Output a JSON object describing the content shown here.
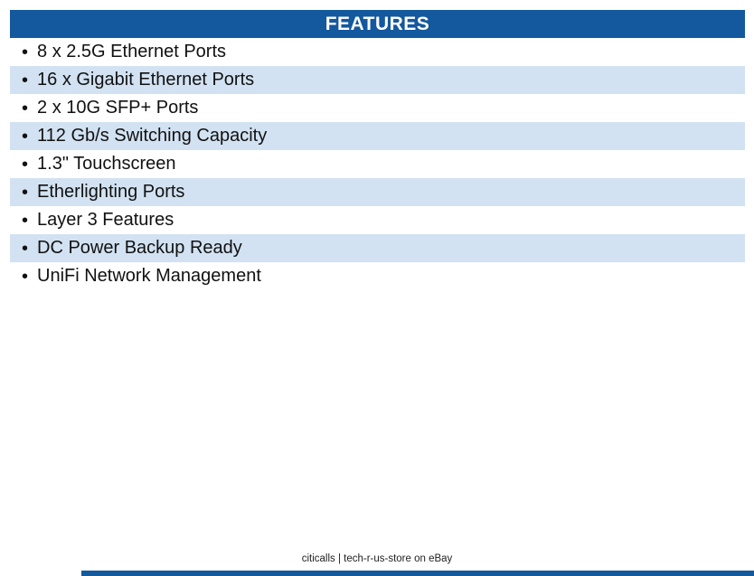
{
  "header": {
    "title": "FEATURES"
  },
  "bullet": "•",
  "features": [
    "8 x 2.5G Ethernet Ports",
    "16 x Gigabit Ethernet Ports",
    "2 x 10G SFP+ Ports",
    "112 Gb/s Switching Capacity",
    "1.3\" Touchscreen",
    "Etherlighting Ports",
    "Layer 3 Features",
    "DC Power Backup Ready",
    "UniFi Network Management"
  ],
  "footer": {
    "credit": "citicalls | tech-r-us-store on eBay"
  },
  "colors": {
    "header_bg": "#14589E",
    "header_text": "#FFFFFF",
    "row_alt_bg": "#D2E2F2",
    "body_text": "#111111"
  }
}
